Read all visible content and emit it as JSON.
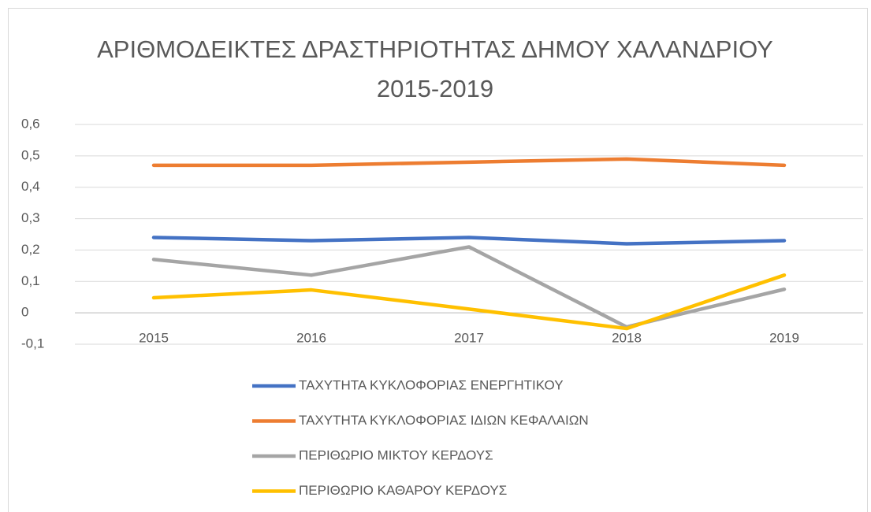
{
  "chart_data": {
    "type": "line",
    "title": "ΑΡΙΘΜΟΔΕΙΚΤΕΣ ΔΡΑΣΤΗΡΙΟΤΗΤΑΣ ΔΗΜΟΥ ΧΑΛΑΝΔΡΙΟΥ 2015-2019",
    "categories": [
      "2015",
      "2016",
      "2017",
      "2018",
      "2019"
    ],
    "series": [
      {
        "name": "ΤΑΧΥΤΗΤΑ ΚΥΚΛΟΦΟΡΙΑΣ ΕΝΕΡΓΗΤΙΚΟΥ",
        "color": "#4472c4",
        "values": [
          0.24,
          0.23,
          0.24,
          0.22,
          0.23
        ]
      },
      {
        "name": "ΤΑΧΥΤΗΤΑ ΚΥΚΛΟΦΟΡΙΑΣ ΙΔΙΩΝ ΚΕΦΑΛΑΙΩΝ",
        "color": "#ed7d31",
        "values": [
          0.47,
          0.47,
          0.48,
          0.49,
          0.47
        ]
      },
      {
        "name": "ΠΕΡΙΘΩΡΙΟ ΜΙΚΤΟΥ ΚΕΡΔΟΥΣ",
        "color": "#a5a5a5",
        "values": [
          0.17,
          0.12,
          0.21,
          -0.045,
          0.075
        ]
      },
      {
        "name": "ΠΕΡΙΘΩΡΙΟ ΚΑΘΑΡΟΥ ΚΕΡΔΟΥΣ",
        "color": "#ffc000",
        "values": [
          0.048,
          0.073,
          0.012,
          -0.05,
          0.12
        ]
      }
    ],
    "ylim": [
      -0.1,
      0.6
    ],
    "yticks": [
      {
        "value": -0.1,
        "label": "-0,1"
      },
      0,
      {
        "value": 0.1,
        "label": "0,1"
      },
      {
        "value": 0.2,
        "label": "0,2"
      },
      {
        "value": 0.3,
        "label": "0,3"
      },
      {
        "value": 0.4,
        "label": "0,4"
      },
      {
        "value": 0.5,
        "label": "0,5"
      },
      {
        "value": 0.6,
        "label": "0,6"
      }
    ],
    "grid": true,
    "legend": "bottom"
  }
}
